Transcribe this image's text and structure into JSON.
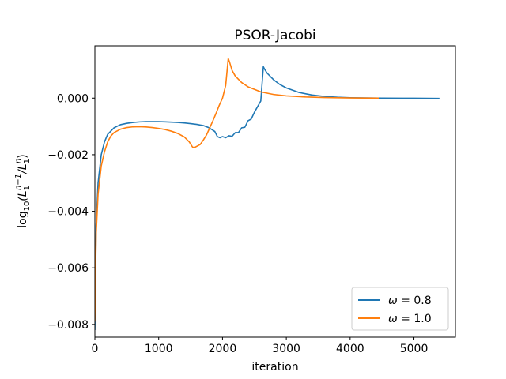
{
  "chart_data": {
    "type": "line",
    "title": "PSOR-Jacobi",
    "xlabel": "iteration",
    "ylabel_tex": {
      "pre": "log",
      "sub": "10",
      "body": "(L",
      "sub1": "1",
      "sup1": "n+1",
      "mid": "/L",
      "sub2": "1",
      "sup2": "n",
      "post": ")"
    },
    "xlim": [
      0,
      5650
    ],
    "ylim": [
      -0.00845,
      0.00185
    ],
    "xticks": [
      0,
      1000,
      2000,
      3000,
      4000,
      5000
    ],
    "xtick_labels": [
      "0",
      "1000",
      "2000",
      "3000",
      "4000",
      "5000"
    ],
    "yticks": [
      -0.008,
      -0.006,
      -0.004,
      -0.002,
      0.0
    ],
    "ytick_labels": [
      "−0.008",
      "−0.006",
      "−0.004",
      "−0.002",
      "0.000"
    ],
    "grid": false,
    "legend_position": "lower-right",
    "series": [
      {
        "name": "ω = 0.8",
        "legend_label": {
          "omega": "ω",
          "rest": " = 0.8"
        },
        "color": "#1f77b4",
        "points": [
          [
            0,
            -0.0082
          ],
          [
            20,
            -0.0045
          ],
          [
            50,
            -0.003
          ],
          [
            100,
            -0.002
          ],
          [
            150,
            -0.00155
          ],
          [
            200,
            -0.00128
          ],
          [
            300,
            -0.00105
          ],
          [
            400,
            -0.00094
          ],
          [
            500,
            -0.00089
          ],
          [
            600,
            -0.00086
          ],
          [
            700,
            -0.00084
          ],
          [
            800,
            -0.000832
          ],
          [
            900,
            -0.00083
          ],
          [
            1000,
            -0.000832
          ],
          [
            1100,
            -0.000838
          ],
          [
            1200,
            -0.000848
          ],
          [
            1300,
            -0.00086
          ],
          [
            1400,
            -0.000878
          ],
          [
            1500,
            -0.0009
          ],
          [
            1600,
            -0.00093
          ],
          [
            1700,
            -0.00097
          ],
          [
            1780,
            -0.00104
          ],
          [
            1840,
            -0.00112
          ],
          [
            1880,
            -0.00118
          ],
          [
            1920,
            -0.00136
          ],
          [
            1960,
            -0.0014
          ],
          [
            2000,
            -0.00136
          ],
          [
            2050,
            -0.0014
          ],
          [
            2100,
            -0.00133
          ],
          [
            2150,
            -0.00135
          ],
          [
            2200,
            -0.00122
          ],
          [
            2250,
            -0.00122
          ],
          [
            2300,
            -0.00105
          ],
          [
            2350,
            -0.00103
          ],
          [
            2400,
            -0.0008
          ],
          [
            2450,
            -0.00074
          ],
          [
            2500,
            -0.0005
          ],
          [
            2550,
            -0.0003
          ],
          [
            2600,
            -0.0001
          ],
          [
            2640,
            0.00111
          ],
          [
            2660,
            0.00102
          ],
          [
            2700,
            0.00088
          ],
          [
            2800,
            0.00065
          ],
          [
            2900,
            0.00048
          ],
          [
            3000,
            0.00036
          ],
          [
            3200,
            0.0002
          ],
          [
            3400,
            0.00011
          ],
          [
            3600,
            6e-05
          ],
          [
            3800,
            3e-05
          ],
          [
            4000,
            1.5e-05
          ],
          [
            4500,
            0.0
          ],
          [
            5000,
            -5e-06
          ],
          [
            5400,
            -1e-05
          ]
        ]
      },
      {
        "name": "ω = 1.0",
        "legend_label": {
          "omega": "ω",
          "rest": " = 1.0"
        },
        "color": "#ff7f0e",
        "points": [
          [
            0,
            -0.0079
          ],
          [
            20,
            -0.0048
          ],
          [
            50,
            -0.0034
          ],
          [
            100,
            -0.0024
          ],
          [
            150,
            -0.0019
          ],
          [
            200,
            -0.00155
          ],
          [
            250,
            -0.00134
          ],
          [
            300,
            -0.00122
          ],
          [
            400,
            -0.0011
          ],
          [
            500,
            -0.00104
          ],
          [
            600,
            -0.001015
          ],
          [
            700,
            -0.00101
          ],
          [
            800,
            -0.00102
          ],
          [
            900,
            -0.00104
          ],
          [
            1000,
            -0.00107
          ],
          [
            1100,
            -0.00111
          ],
          [
            1200,
            -0.00117
          ],
          [
            1300,
            -0.00125
          ],
          [
            1400,
            -0.00137
          ],
          [
            1480,
            -0.00155
          ],
          [
            1530,
            -0.00173
          ],
          [
            1560,
            -0.00175
          ],
          [
            1600,
            -0.0017
          ],
          [
            1650,
            -0.00164
          ],
          [
            1700,
            -0.00148
          ],
          [
            1750,
            -0.0013
          ],
          [
            1800,
            -0.00105
          ],
          [
            1850,
            -0.0008
          ],
          [
            1900,
            -0.00053
          ],
          [
            1950,
            -0.00025
          ],
          [
            2000,
            0.0
          ],
          [
            2050,
            0.00045
          ],
          [
            2090,
            0.0014
          ],
          [
            2110,
            0.00128
          ],
          [
            2150,
            0.00098
          ],
          [
            2200,
            0.00078
          ],
          [
            2300,
            0.00055
          ],
          [
            2400,
            0.0004
          ],
          [
            2600,
            0.00022
          ],
          [
            2800,
            0.00013
          ],
          [
            3000,
            8e-05
          ],
          [
            3300,
            4e-05
          ],
          [
            3600,
            2e-05
          ],
          [
            4000,
            5e-06
          ],
          [
            4450,
            0.0
          ]
        ]
      }
    ]
  }
}
